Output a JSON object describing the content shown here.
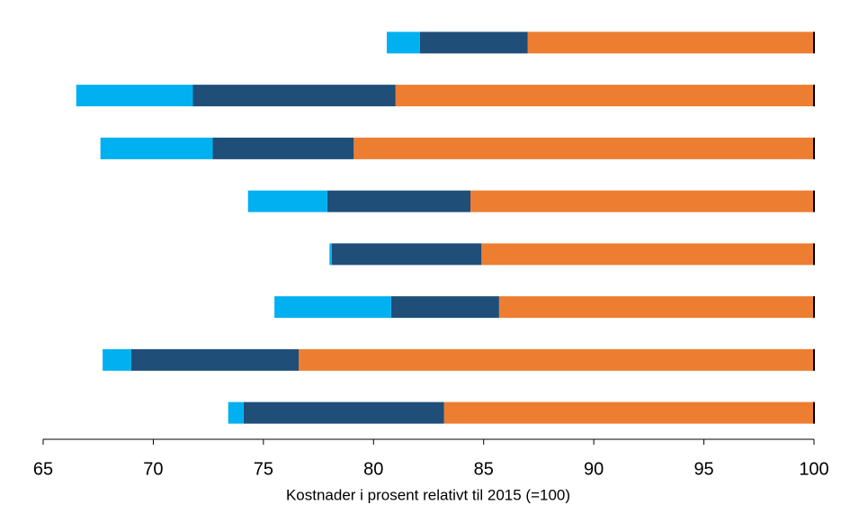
{
  "chart_data": {
    "type": "bar",
    "orientation": "horizontal",
    "stack_from": "right",
    "xlabel": "Kostnader i prosent relativt til 2015 (=100)",
    "categories": [
      null,
      null,
      null,
      null,
      null,
      null,
      null,
      null
    ],
    "series": [
      {
        "color": "#ed7d31",
        "values": [
          13.0,
          19.0,
          20.9,
          15.6,
          15.1,
          14.3,
          23.4,
          16.8
        ]
      },
      {
        "color": "#1f4e79",
        "values": [
          4.9,
          9.2,
          6.4,
          6.5,
          6.8,
          4.9,
          7.6,
          9.1
        ]
      },
      {
        "color": "#00b0f0",
        "values": [
          1.5,
          5.3,
          5.1,
          3.6,
          0.1,
          5.3,
          1.3,
          0.7
        ]
      }
    ],
    "xlim": [
      65,
      100
    ],
    "xticks": [
      65,
      70,
      75,
      80,
      85,
      90,
      95,
      100
    ]
  }
}
